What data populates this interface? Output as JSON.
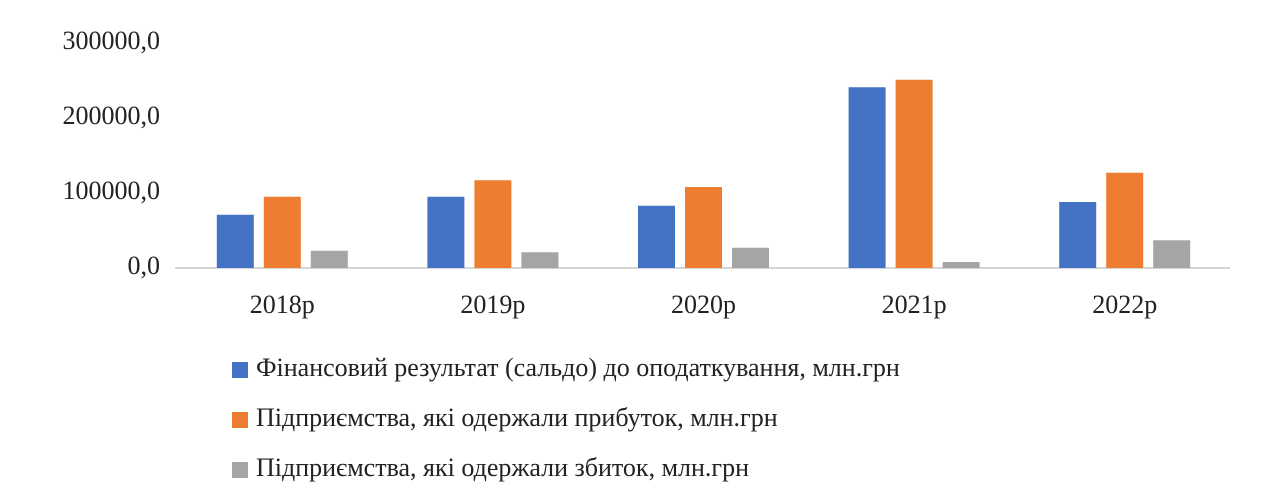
{
  "chart_data": {
    "type": "bar",
    "categories": [
      "2018р",
      "2019р",
      "2020р",
      "2021р",
      "2022р"
    ],
    "series": [
      {
        "name": "Фінансовий результат (сальдо) до оподаткування, млн.грн",
        "color": "#4472c4",
        "values": [
          71000,
          95000,
          83000,
          241000,
          88000
        ]
      },
      {
        "name": "Підприємства, які одержали прибуток, млн.грн",
        "color": "#ed7d31",
        "values": [
          95000,
          117000,
          108000,
          251000,
          127000
        ]
      },
      {
        "name": "Підприємства, які одержали збиток, млн.грн",
        "color": "#a5a5a5",
        "values": [
          23000,
          21000,
          27000,
          8000,
          37000
        ]
      }
    ],
    "ylim": [
      0,
      300000
    ],
    "yticks": [
      {
        "value": 0,
        "label": "0,0"
      },
      {
        "value": 100000,
        "label": "100000,0"
      },
      {
        "value": 200000,
        "label": "200000,0"
      },
      {
        "value": 300000,
        "label": "300000,0"
      }
    ],
    "grid": false,
    "legend": "bottom"
  }
}
